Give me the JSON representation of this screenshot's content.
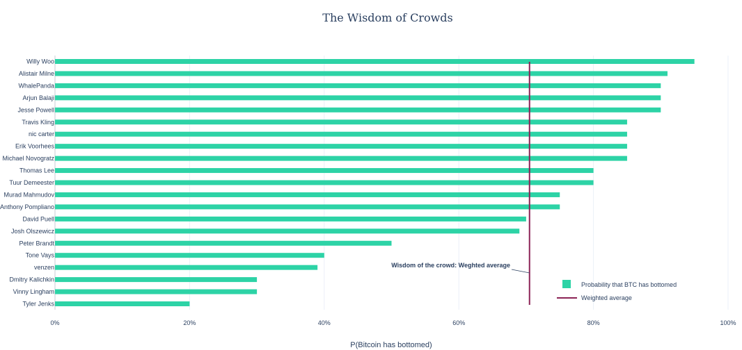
{
  "chart_data": {
    "type": "bar",
    "orientation": "horizontal",
    "title": "The Wisdom of Crowds",
    "xlabel": "P(Bitcoin has bottomed)",
    "ylabel": "",
    "xlim": [
      0,
      1
    ],
    "x_ticks": [
      0,
      0.2,
      0.4,
      0.6,
      0.8,
      1.0
    ],
    "x_tick_labels": [
      "0%",
      "20%",
      "40%",
      "60%",
      "80%",
      "100%"
    ],
    "grid": true,
    "categories": [
      "Willy Woo",
      "Alistair Milne",
      "WhalePanda",
      "Arjun Balaji",
      "Jesse Powell",
      "Travis Kling",
      "nic carter",
      "Erik Voorhees",
      "Michael Novogratz",
      "Thomas Lee",
      "Tuur Demeester",
      "Murad Mahmudov",
      "Anthony Pompliano",
      "David Puell",
      "Josh Olszewicz",
      "Peter Brandt",
      "Tone Vays",
      "venzen",
      "Dmitry Kalichkin",
      "Vinny Lingham",
      "Tyler Jenks"
    ],
    "series": [
      {
        "name": "Probability that BTC has bottomed",
        "color": "#2dd3a6",
        "values": [
          0.95,
          0.91,
          0.9,
          0.9,
          0.9,
          0.85,
          0.85,
          0.85,
          0.85,
          0.8,
          0.8,
          0.75,
          0.75,
          0.7,
          0.69,
          0.5,
          0.4,
          0.39,
          0.3,
          0.3,
          0.2
        ]
      }
    ],
    "reference_line": {
      "name": "Weighted average",
      "value": 0.705,
      "color": "#8b2255"
    },
    "annotation": {
      "text": "Wisdom of the crowd: Weghted average"
    },
    "legend": {
      "placement": "bottom-right",
      "items": [
        "Probability that BTC has bottomed",
        "Weighted average"
      ]
    }
  }
}
